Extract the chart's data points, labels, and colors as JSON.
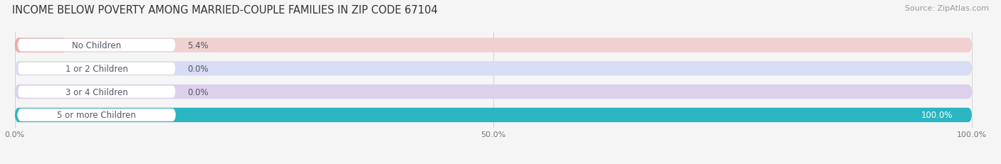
{
  "title": "INCOME BELOW POVERTY AMONG MARRIED-COUPLE FAMILIES IN ZIP CODE 67104",
  "source": "Source: ZipAtlas.com",
  "categories": [
    "No Children",
    "1 or 2 Children",
    "3 or 4 Children",
    "5 or more Children"
  ],
  "values": [
    5.4,
    0.0,
    0.0,
    100.0
  ],
  "bar_colors": [
    "#f0a8a8",
    "#b8c4ec",
    "#c8aed8",
    "#2ab5c0"
  ],
  "track_colors": [
    "#f0d0d0",
    "#d8dcf4",
    "#ddd0ec",
    "#e0f0f4"
  ],
  "label_text_colors": [
    "#555566",
    "#555566",
    "#555566",
    "#555566"
  ],
  "value_text_colors": [
    "#555566",
    "#555566",
    "#555566",
    "#ffffff"
  ],
  "xtick_labels": [
    "0.0%",
    "50.0%",
    "100.0%"
  ],
  "background_color": "#f5f5f5",
  "title_fontsize": 10.5,
  "source_fontsize": 8,
  "label_fontsize": 8.5,
  "value_fontsize": 8.5
}
